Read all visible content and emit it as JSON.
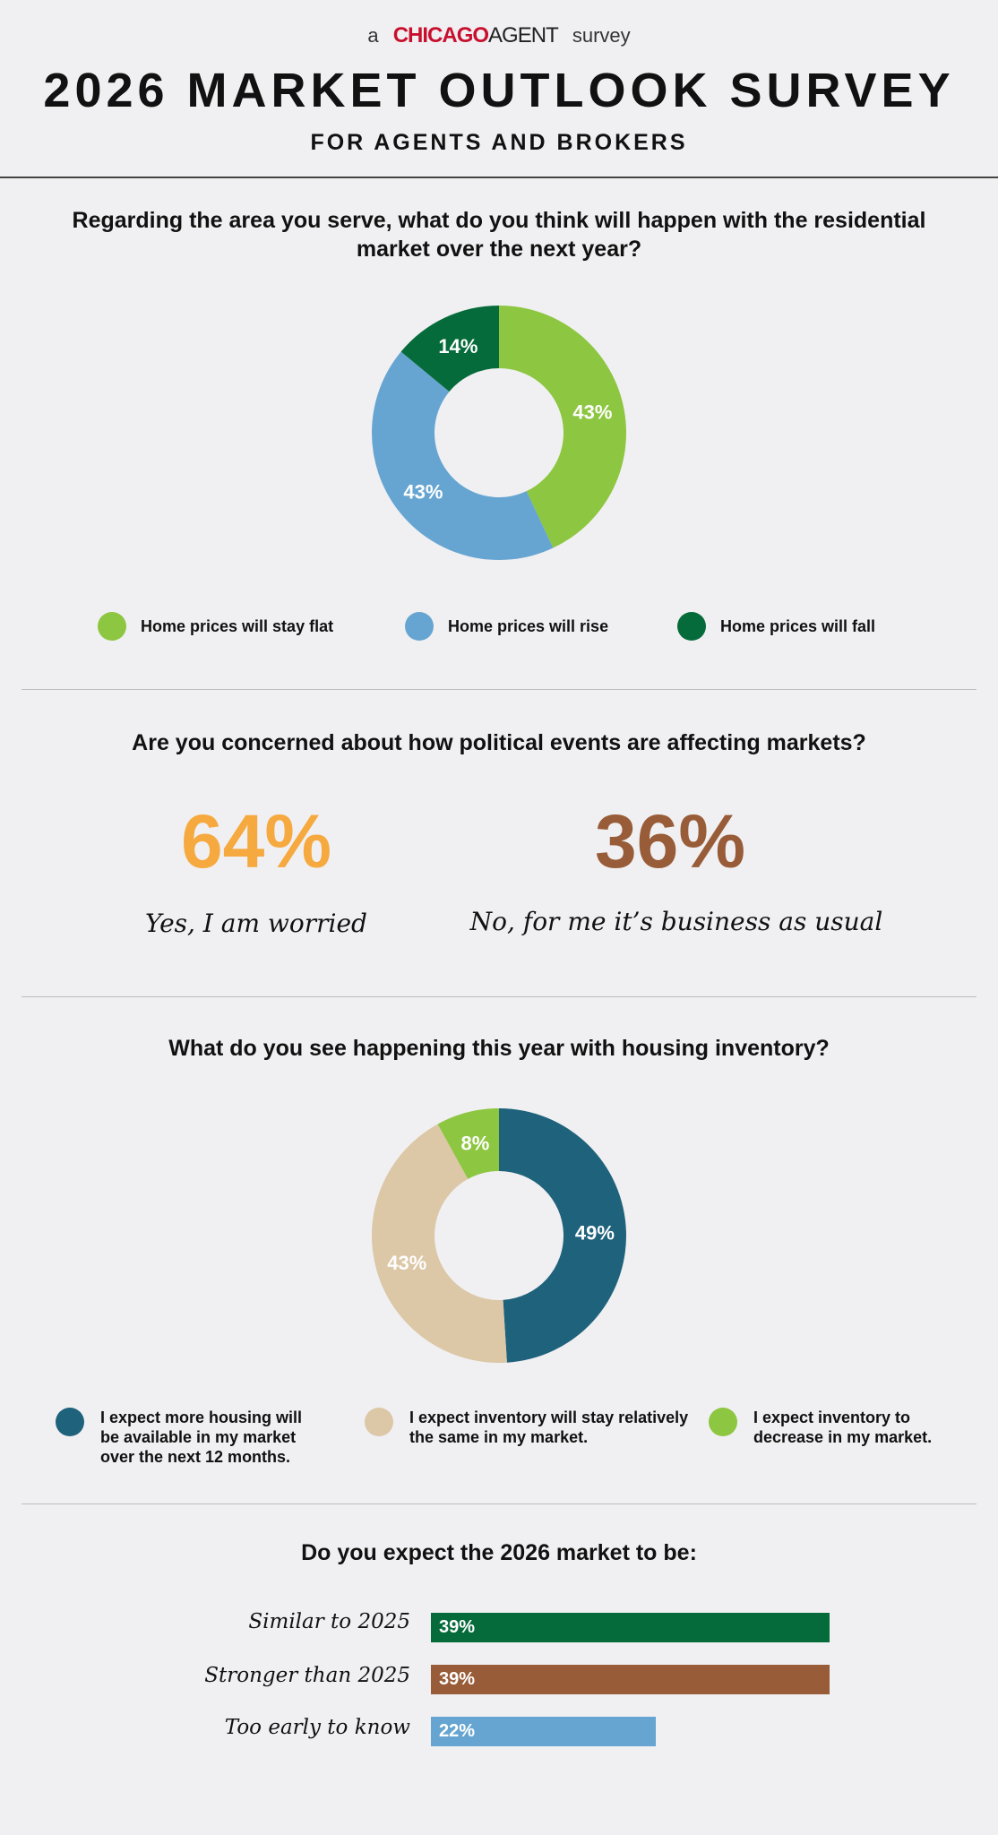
{
  "header": {
    "byline_prefix": "a",
    "logo_chicago": "CHICAGO",
    "logo_agent": "AGENT",
    "byline_suffix": "survey",
    "title": "2026 MARKET OUTLOOK SURVEY",
    "subtitle": "FOR AGENTS AND BROKERS"
  },
  "q1": {
    "question": "Regarding the area you serve, what do you think will happen with the residential market over the next year?"
  },
  "q2": {
    "question": "Are you concerned about how political events are affecting markets?",
    "yes_pct": "64%",
    "yes_label": "Yes, I am worried",
    "yes_color": "#f5a93f",
    "no_pct": "36%",
    "no_label": "No, for me it’s business as usual",
    "no_color": "#985c38"
  },
  "q3": {
    "question": "What do you see happening this year with housing inventory?"
  },
  "q4": {
    "question": "Do you expect the 2026 market to be:"
  },
  "chart_data": [
    {
      "type": "pie",
      "donut": true,
      "categories": [
        "Home prices will stay flat",
        "Home prices will rise",
        "Home prices will fall"
      ],
      "values": [
        43,
        43,
        14
      ],
      "labels": [
        "43%",
        "43%",
        "14%"
      ],
      "colors": [
        "#8dc640",
        "#66a5d1",
        "#066b3a"
      ],
      "legend": "bottom"
    },
    {
      "type": "pie",
      "donut": true,
      "categories": [
        "I expect more housing will be available in my market over the next 12 months.",
        "I expect inventory will stay relatively the same in my market.",
        "I expect inventory to decrease in my market."
      ],
      "values": [
        49,
        43,
        8
      ],
      "labels": [
        "49%",
        "43%",
        "8%"
      ],
      "colors": [
        "#1f627c",
        "#dcc7a6",
        "#8dc640"
      ],
      "legend": "bottom"
    },
    {
      "type": "bar",
      "orientation": "horizontal",
      "categories": [
        "Similar to 2025",
        "Stronger than 2025",
        "Too early to know"
      ],
      "values": [
        39,
        39,
        22
      ],
      "labels": [
        "39%",
        "39%",
        "22%"
      ],
      "colors": [
        "#066b3a",
        "#985c38",
        "#66a5d1"
      ],
      "xlim": [
        0,
        39
      ]
    }
  ]
}
